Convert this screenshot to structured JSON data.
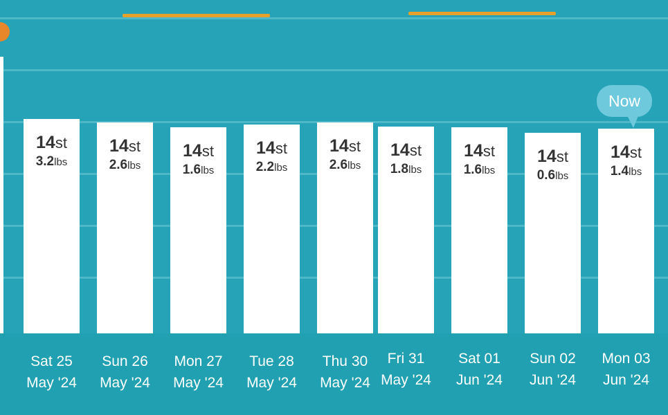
{
  "chart_data": {
    "type": "bar",
    "title": "",
    "xlabel": "",
    "ylabel": "",
    "categories": [
      {
        "day": "Sat 25",
        "month": "May '24"
      },
      {
        "day": "Sun 26",
        "month": "May '24"
      },
      {
        "day": "Mon 27",
        "month": "May '24"
      },
      {
        "day": "Tue 28",
        "month": "May '24"
      },
      {
        "day": "Thu 30",
        "month": "May '24"
      },
      {
        "day": "Fri 31",
        "month": "May '24"
      },
      {
        "day": "Sat 01",
        "month": "Jun '24"
      },
      {
        "day": "Sun 02",
        "month": "Jun '24"
      },
      {
        "day": "Mon 03",
        "month": "Jun '24"
      }
    ],
    "values_lbs": [
      199.2,
      198.6,
      197.6,
      198.2,
      198.6,
      197.8,
      197.6,
      196.6,
      197.4
    ],
    "labels": [
      {
        "stones": "14",
        "st_unit": "st",
        "pounds": "3.2",
        "lbs_unit": "lbs"
      },
      {
        "stones": "14",
        "st_unit": "st",
        "pounds": "2.6",
        "lbs_unit": "lbs"
      },
      {
        "stones": "14",
        "st_unit": "st",
        "pounds": "1.6",
        "lbs_unit": "lbs"
      },
      {
        "stones": "14",
        "st_unit": "st",
        "pounds": "2.2",
        "lbs_unit": "lbs"
      },
      {
        "stones": "14",
        "st_unit": "st",
        "pounds": "2.6",
        "lbs_unit": "lbs"
      },
      {
        "stones": "14",
        "st_unit": "st",
        "pounds": "1.8",
        "lbs_unit": "lbs"
      },
      {
        "stones": "14",
        "st_unit": "st",
        "pounds": "1.6",
        "lbs_unit": "lbs"
      },
      {
        "stones": "14",
        "st_unit": "st",
        "pounds": "0.6",
        "lbs_unit": "lbs"
      },
      {
        "stones": "14",
        "st_unit": "st",
        "pounds": "1.4",
        "lbs_unit": "lbs"
      }
    ],
    "current_marker": {
      "label": "Now",
      "category_index": 8
    },
    "grid": true,
    "legend": "none",
    "colors": {
      "background": "#27a3b7",
      "bar": "#ffffff",
      "gridline": "#4fb8c8",
      "goal": "#e5a12a",
      "marker": "#6ec9dd",
      "text_on_bar": "#333333",
      "axis_text": "#ffffff"
    }
  }
}
